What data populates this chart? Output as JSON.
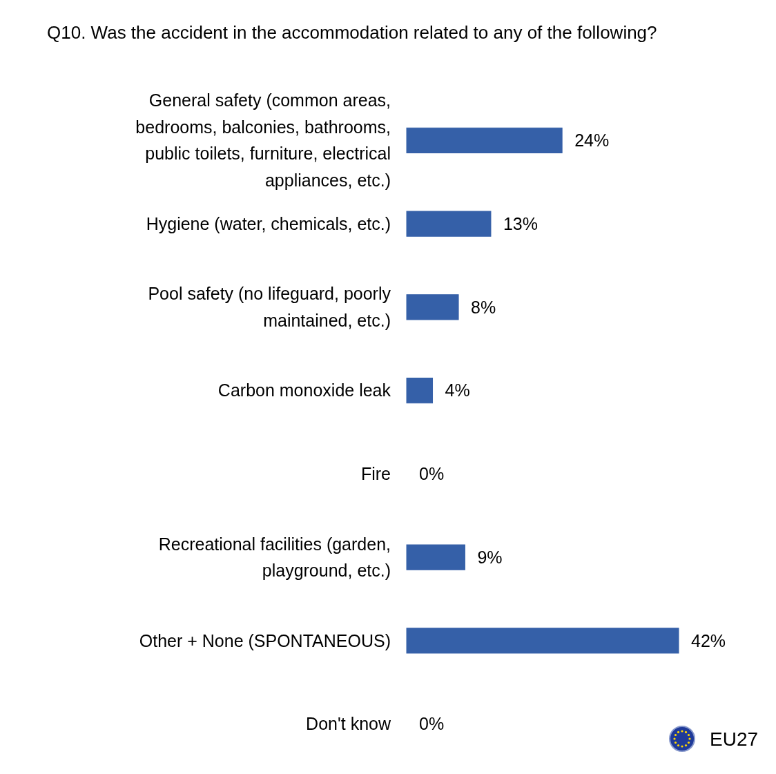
{
  "chart_data": {
    "type": "bar",
    "orientation": "horizontal",
    "title": "Q10. Was the accident in the accommodation related to any of the following?",
    "categories": [
      "General safety (common areas, bedrooms, balconies, bathrooms, public toilets, furniture, electrical appliances, etc.)",
      "Hygiene (water, chemicals, etc.)",
      "Pool safety (no lifeguard, poorly maintained, etc.)",
      "Carbon monoxide leak",
      "Fire",
      "Recreational facilities (garden, playground, etc.)",
      "Other + None (SPONTANEOUS)",
      "Don't know"
    ],
    "values": [
      24,
      13,
      8,
      4,
      0,
      9,
      42,
      0
    ],
    "value_labels": [
      "24%",
      "13%",
      "8%",
      "4%",
      "0%",
      "9%",
      "42%",
      "0%"
    ],
    "color": "#3560a8",
    "tick_labels": "y",
    "annotations": [
      "EU27"
    ]
  }
}
